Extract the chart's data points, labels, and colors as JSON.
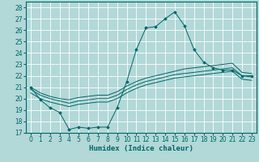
{
  "xlabel": "Humidex (Indice chaleur)",
  "bg_color": "#b2d8d8",
  "grid_color": "#ffffff",
  "line_color": "#006666",
  "xlim": [
    -0.5,
    23.5
  ],
  "ylim": [
    17,
    28.5
  ],
  "yticks": [
    17,
    18,
    19,
    20,
    21,
    22,
    23,
    24,
    25,
    26,
    27,
    28
  ],
  "xticks": [
    0,
    1,
    2,
    3,
    4,
    5,
    6,
    7,
    8,
    9,
    10,
    11,
    12,
    13,
    14,
    15,
    16,
    17,
    18,
    19,
    20,
    21,
    22,
    23
  ],
  "y_main": [
    21.0,
    19.9,
    19.2,
    18.8,
    17.3,
    17.5,
    17.4,
    17.5,
    17.5,
    19.2,
    21.5,
    24.3,
    26.2,
    26.3,
    27.0,
    27.6,
    26.4,
    24.3,
    23.2,
    22.7,
    22.5,
    22.5,
    22.0,
    22.0
  ],
  "y_top": [
    21.0,
    20.5,
    20.2,
    20.0,
    19.9,
    20.1,
    20.2,
    20.3,
    20.3,
    20.6,
    21.1,
    21.5,
    21.8,
    22.0,
    22.2,
    22.4,
    22.6,
    22.7,
    22.8,
    22.9,
    23.0,
    23.1,
    22.3,
    22.2
  ],
  "y_mid": [
    20.8,
    20.3,
    20.0,
    19.8,
    19.6,
    19.8,
    19.9,
    20.0,
    20.0,
    20.3,
    20.8,
    21.2,
    21.5,
    21.7,
    21.9,
    22.1,
    22.2,
    22.3,
    22.4,
    22.5,
    22.6,
    22.7,
    22.0,
    21.9
  ],
  "y_bot": [
    20.5,
    20.0,
    19.7,
    19.5,
    19.3,
    19.5,
    19.6,
    19.7,
    19.7,
    20.0,
    20.5,
    20.9,
    21.2,
    21.4,
    21.6,
    21.8,
    21.9,
    22.0,
    22.1,
    22.2,
    22.3,
    22.4,
    21.7,
    21.6
  ],
  "tick_fontsize": 5.5,
  "axis_fontsize": 6.5
}
